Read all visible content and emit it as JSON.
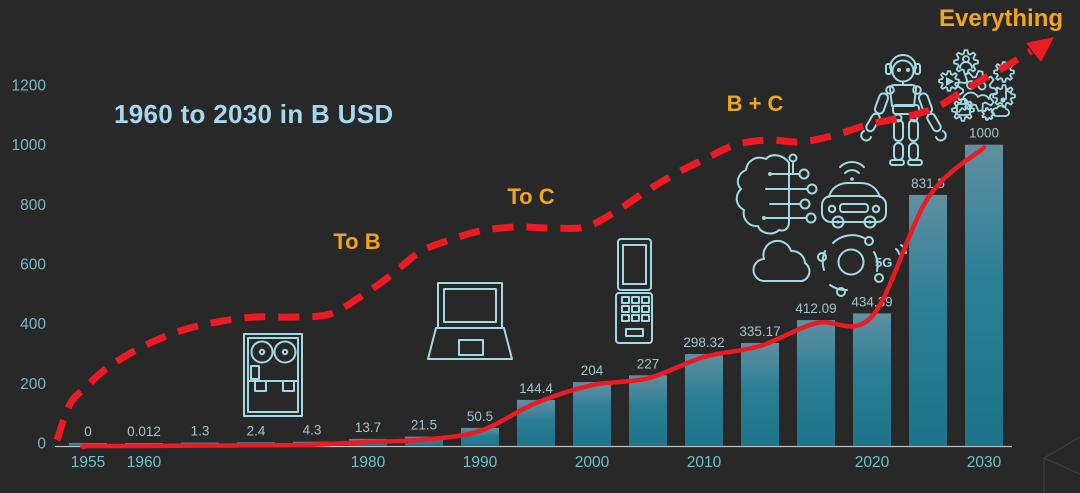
{
  "slide": {
    "title": "1960 to 2030 in B USD",
    "annotations": [
      {
        "id": "to-b",
        "text": "To B"
      },
      {
        "id": "to-c",
        "text": "To C"
      },
      {
        "id": "b-plus-c",
        "text": "B + C"
      },
      {
        "id": "everything",
        "text": "Everything"
      }
    ]
  },
  "chart_data": {
    "type": "bar",
    "title": "1960 to 2030 in B USD",
    "unit": "B USD",
    "categories": [
      "1955",
      "1960",
      "",
      "",
      "",
      "1980",
      "",
      "1990",
      "",
      "2000",
      "",
      "2010",
      "",
      "",
      "2020",
      "",
      "2030"
    ],
    "values": [
      0,
      0.012,
      1.3,
      2.4,
      4.3,
      13.7,
      21.5,
      50.5,
      144.4,
      204,
      227,
      298.32,
      335.17,
      412.09,
      434.39,
      831.5,
      1000
    ],
    "value_labels": [
      "0",
      "0.012",
      "1.3",
      "2.4",
      "4.3",
      "13.7",
      "21.5",
      "50.5",
      "144.4",
      "204",
      "227",
      "298.32",
      "335.17",
      "412.09",
      "434.39",
      "831.5",
      "1000"
    ],
    "y_ticks": [
      0,
      200,
      400,
      600,
      800,
      1000,
      1200
    ],
    "ylim": [
      0,
      1200
    ],
    "grid": false,
    "legend": false,
    "overlays": [
      "solid red line following bar values",
      "thick dashed red growth curve ending in arrow at Everything"
    ]
  },
  "icons": {
    "five_g_label": "5G",
    "items": [
      "mainframe-tape-icon",
      "laptop-icon",
      "feature-phone-icon",
      "ai-brain-icon",
      "cloud-icon",
      "connected-car-icon",
      "5g-network-icon",
      "robot-icon",
      "app-gears-icon"
    ]
  },
  "colors": {
    "background": "#282828",
    "title_text": "#a6d9f0",
    "axis_label": "#7db7c4",
    "x_label": "#68c3cf",
    "value_label": "#9fc5ce",
    "bar_top": "#608fa0",
    "bar_mid": "#2a7f97",
    "bar_bottom": "#1d7389",
    "trend_red": "#ec1a23",
    "annotation_orange": "#f1a51d",
    "icon_stroke": "#a2dae3",
    "axis_line": "#b9bfc2",
    "watermark": "#3d3d3d"
  }
}
